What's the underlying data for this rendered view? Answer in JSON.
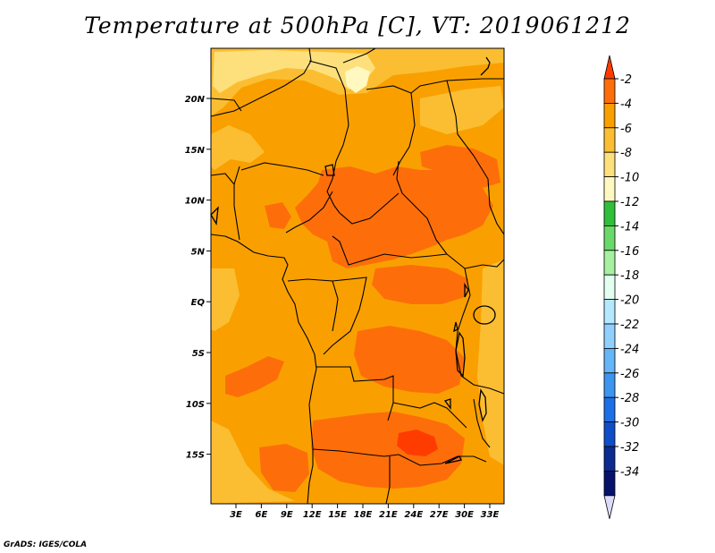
{
  "title": "Temperature at 500hPa [C], VT: 2019061212",
  "footer": "GrADS: IGES/COLA",
  "map": {
    "variable": "Temperature at 500hPa",
    "units": "C",
    "valid_time": "2019061212",
    "lat_ticks": [
      "20N",
      "15N",
      "10N",
      "5N",
      "EQ",
      "5S",
      "10S",
      "15S"
    ],
    "lon_ticks": [
      "3E",
      "6E",
      "9E",
      "12E",
      "15E",
      "18E",
      "21E",
      "24E",
      "27E",
      "30E",
      "33E"
    ]
  },
  "colorbar": {
    "labels": [
      "-2",
      "-4",
      "-6",
      "-8",
      "-10",
      "-12",
      "-14",
      "-16",
      "-18",
      "-20",
      "-22",
      "-24",
      "-26",
      "-28",
      "-30",
      "-32",
      "-34"
    ],
    "colors": [
      "#ff3c00",
      "#fd6e0a",
      "#f9a000",
      "#fbbe32",
      "#fde07c",
      "#fff8c0",
      "#2fbf3a",
      "#6ad96a",
      "#a6f0a0",
      "#e2fff0",
      "#b4e8ff",
      "#8fd0ff",
      "#64b6f8",
      "#3c96f0",
      "#1c6fe6",
      "#0f4ec8",
      "#0c2a90",
      "#07126a",
      "#dcdcf8"
    ],
    "top_arrow_color": "#ff3c00",
    "bottom_arrow_color": "#dcdcf8"
  },
  "palette": {
    "base": "#f9a000",
    "warm": "#fd6e0a",
    "hot": "#ff3c00",
    "cool": "#fbbe32",
    "cooler": "#fde07c",
    "coolest": "#fff8c0"
  }
}
